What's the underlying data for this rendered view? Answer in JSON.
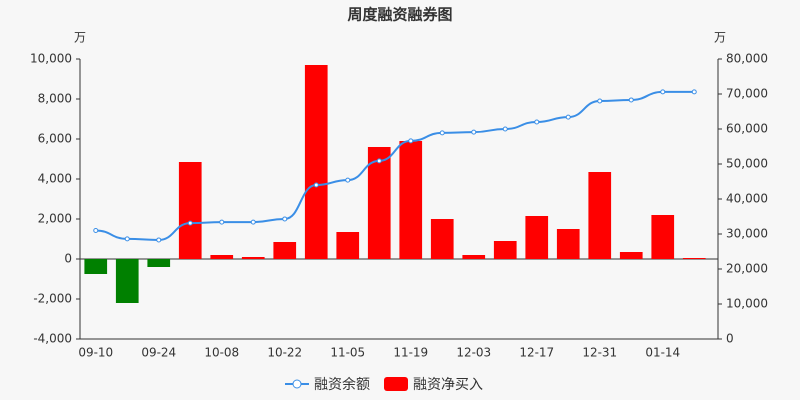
{
  "chart_data": {
    "type": "bar-line",
    "title": "周度融资融券图",
    "y_unit": "万",
    "y2_unit": "万",
    "categories": [
      "09-10",
      null,
      "09-24",
      null,
      "10-08",
      null,
      "10-22",
      null,
      "11-05",
      null,
      "11-19",
      null,
      "12-03",
      null,
      "12-17",
      null,
      "12-31",
      null,
      "01-14",
      null
    ],
    "series": [
      {
        "name": "融资余额",
        "kind": "line",
        "axis": "y2",
        "color": "#3a8ee6",
        "values": [
          31000,
          28600,
          28300,
          33100,
          33400,
          33400,
          34300,
          44000,
          45400,
          50900,
          56600,
          58900,
          59100,
          60000,
          62000,
          63400,
          68000,
          68300,
          70600,
          70600
        ]
      },
      {
        "name": "融资净买入",
        "kind": "bar",
        "axis": "y",
        "color": "#ff0000",
        "negative_color": "#008000",
        "values": [
          -750,
          -2200,
          -400,
          4850,
          200,
          100,
          850,
          9700,
          1350,
          5600,
          5900,
          2000,
          200,
          900,
          2150,
          1500,
          4350,
          350,
          2200,
          50
        ]
      }
    ],
    "ylim": [
      -4000,
      10000
    ],
    "yticks": [
      {
        "value": -4000,
        "label": "-4,000"
      },
      {
        "value": -2000,
        "label": "-2,000"
      },
      0,
      {
        "value": 2000,
        "label": "2,000"
      },
      {
        "value": 4000,
        "label": "4,000"
      },
      {
        "value": 6000,
        "label": "6,000"
      },
      {
        "value": 8000,
        "label": "8,000"
      },
      {
        "value": 10000,
        "label": "10,000"
      }
    ],
    "y2lim": [
      0,
      80000
    ],
    "y2ticks": [
      0,
      {
        "value": 10000,
        "label": "10,000"
      },
      {
        "value": 20000,
        "label": "20,000"
      },
      {
        "value": 30000,
        "label": "30,000"
      },
      {
        "value": 40000,
        "label": "40,000"
      },
      {
        "value": 50000,
        "label": "50,000"
      },
      {
        "value": 60000,
        "label": "60,000"
      },
      {
        "value": 70000,
        "label": "70,000"
      },
      {
        "value": 80000,
        "label": "80,000"
      }
    ],
    "grid": false
  }
}
